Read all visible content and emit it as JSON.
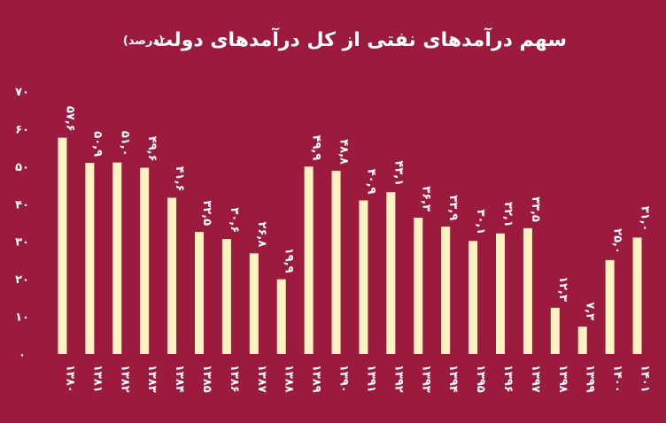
{
  "chart_data": {
    "type": "bar",
    "title": "سهم درآمدهای نفتی از کل درآمدهای دولت",
    "title_unit": "(درصد)",
    "ylim": [
      0,
      70
    ],
    "yticks": [
      0,
      10,
      20,
      30,
      40,
      50,
      60,
      70
    ],
    "ytick_labels": [
      "۰",
      "۱۰",
      "۲۰",
      "۳۰",
      "۴۰",
      "۵۰",
      "۶۰",
      "۷۰"
    ],
    "categories": [
      "۱۳۸۰",
      "۱۳۸۱",
      "۱۳۸۲",
      "۱۳۸۳",
      "۱۳۸۴",
      "۱۳۸۵",
      "۱۳۸۶",
      "۱۳۸۷",
      "۱۳۸۸",
      "۱۳۸۹",
      "۱۳۹۰",
      "۱۳۹۱",
      "۱۳۹۲",
      "۱۳۹۳",
      "۱۳۹۴",
      "۱۳۹۵",
      "۱۳۹۶",
      "۱۳۹۷",
      "۱۳۹۸",
      "۱۳۹۹",
      "۱۴۰۰",
      "۱۴۰۱"
    ],
    "values": [
      57.6,
      50.9,
      51.0,
      49.6,
      41.6,
      32.5,
      30.6,
      26.8,
      19.9,
      49.9,
      48.8,
      40.9,
      43.1,
      36.3,
      33.9,
      30.1,
      32.1,
      33.5,
      12.3,
      7.3,
      25.0,
      31.0
    ],
    "value_labels": [
      "۵۷,۶",
      "۵۰,۹",
      "۵۱,۰",
      "۴۹,۶",
      "۴۱,۶",
      "۳۲,۵",
      "۳۰,۶",
      "۲۶,۸",
      "۱۹,۹",
      "۴۹,۹",
      "۴۸,۸",
      "۴۰,۹",
      "۴۳,۱",
      "۳۶,۳",
      "۳۳,۹",
      "۳۰,۱",
      "۳۲,۱",
      "۳۳,۵",
      "۱۲,۳",
      "۷,۳",
      "۲۵,۰",
      "۳۱,۰"
    ],
    "grid": false,
    "colors": {
      "background": "#9b1a3d",
      "bar": "#fdf3c0",
      "text": "#ffffff"
    }
  }
}
